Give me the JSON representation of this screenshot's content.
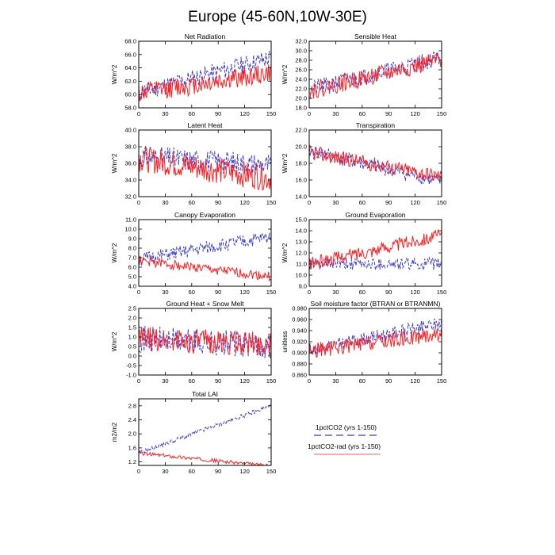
{
  "figure": {
    "title": "Europe (45-60N,10W-30E)",
    "legend": {
      "entries": [
        {
          "label": "1pctCO2 (yrs 1-150)",
          "color": "#3b3bd6",
          "dashed": true
        },
        {
          "label": "1pctCO2-rad (yrs 1-150)",
          "color": "#ff2020",
          "dashed": false
        }
      ]
    }
  },
  "chart_data": [
    {
      "type": "line",
      "title": "Net Radiation",
      "ylabel": "W/m^2",
      "xlim": [
        0,
        150
      ],
      "ylim": [
        58,
        68
      ],
      "xticks": [
        0,
        30,
        60,
        90,
        120,
        150
      ],
      "yticks": [
        "58.0",
        "60.0",
        "62.0",
        "64.0",
        "66.0",
        "68.0"
      ],
      "series": [
        {
          "name": "1pctCO2 (yrs 1-150)",
          "start": 60.3,
          "end": 65.5,
          "amp": 1.4,
          "seed": 11
        },
        {
          "name": "1pctCO2-rad (yrs 1-150)",
          "start": 60.2,
          "end": 63.2,
          "amp": 1.5,
          "seed": 12
        }
      ]
    },
    {
      "type": "line",
      "title": "Sensible Heat",
      "ylabel": "W/m^2",
      "xlim": [
        0,
        150
      ],
      "ylim": [
        18,
        32
      ],
      "xticks": [
        0,
        30,
        60,
        90,
        120,
        150
      ],
      "yticks": [
        "18.0",
        "20.0",
        "22.0",
        "24.0",
        "26.0",
        "28.0",
        "30.0",
        "32.0"
      ],
      "series": [
        {
          "name": "1pctCO2 (yrs 1-150)",
          "start": 21.8,
          "end": 28.6,
          "amp": 1.8,
          "seed": 21
        },
        {
          "name": "1pctCO2-rad (yrs 1-150)",
          "start": 21.6,
          "end": 28.0,
          "amp": 1.9,
          "seed": 22
        }
      ]
    },
    {
      "type": "line",
      "title": "Latent Heat",
      "ylabel": "W/m^2",
      "xlim": [
        0,
        150
      ],
      "ylim": [
        32,
        40
      ],
      "xticks": [
        0,
        30,
        60,
        90,
        120,
        150
      ],
      "yticks": [
        "32.0",
        "34.0",
        "36.0",
        "38.0",
        "40.0"
      ],
      "series": [
        {
          "name": "1pctCO2 (yrs 1-150)",
          "start": 36.8,
          "end": 35.8,
          "amp": 1.4,
          "seed": 31
        },
        {
          "name": "1pctCO2-rad (yrs 1-150)",
          "start": 36.6,
          "end": 34.2,
          "amp": 1.6,
          "seed": 32
        }
      ]
    },
    {
      "type": "line",
      "title": "Transpiration",
      "ylabel": "W/m^2",
      "xlim": [
        0,
        150
      ],
      "ylim": [
        14,
        22
      ],
      "xticks": [
        0,
        30,
        60,
        90,
        120,
        150
      ],
      "yticks": [
        "14.0",
        "16.0",
        "18.0",
        "20.0",
        "22.0"
      ],
      "series": [
        {
          "name": "1pctCO2 (yrs 1-150)",
          "start": 19.5,
          "end": 15.8,
          "amp": 0.9,
          "seed": 41
        },
        {
          "name": "1pctCO2-rad (yrs 1-150)",
          "start": 19.3,
          "end": 16.4,
          "amp": 0.9,
          "seed": 42
        }
      ]
    },
    {
      "type": "line",
      "title": "Canopy Evaporation",
      "ylabel": "W/m^2",
      "xlim": [
        0,
        150
      ],
      "ylim": [
        4,
        11
      ],
      "xticks": [
        0,
        30,
        60,
        90,
        120,
        150
      ],
      "yticks": [
        "4.0",
        "5.0",
        "6.0",
        "7.0",
        "8.0",
        "9.0",
        "10.0",
        "11.0"
      ],
      "series": [
        {
          "name": "1pctCO2 (yrs 1-150)",
          "start": 6.8,
          "end": 9.2,
          "amp": 0.7,
          "seed": 51
        },
        {
          "name": "1pctCO2-rad (yrs 1-150)",
          "start": 6.7,
          "end": 5.0,
          "amp": 0.5,
          "seed": 52
        }
      ]
    },
    {
      "type": "line",
      "title": "Ground Evaporation",
      "ylabel": "W/m^2",
      "xlim": [
        0,
        150
      ],
      "ylim": [
        9,
        15
      ],
      "xticks": [
        0,
        30,
        60,
        90,
        120,
        150
      ],
      "yticks": [
        "9.0",
        "10.0",
        "11.0",
        "12.0",
        "13.0",
        "14.0",
        "15.0"
      ],
      "series": [
        {
          "name": "1pctCO2 (yrs 1-150)",
          "start": 11.0,
          "end": 11.0,
          "amp": 0.55,
          "seed": 61
        },
        {
          "name": "1pctCO2-rad (yrs 1-150)",
          "start": 11.0,
          "end": 13.6,
          "amp": 0.6,
          "seed": 62
        }
      ]
    },
    {
      "type": "line",
      "title": "Ground Heat + Snow Melt",
      "ylabel": "W/m^2",
      "xlim": [
        0,
        150
      ],
      "ylim": [
        -1,
        2.5
      ],
      "xticks": [
        0,
        30,
        60,
        90,
        120,
        150
      ],
      "yticks": [
        "-1.0",
        "-0.5",
        "0.0",
        "0.5",
        "1.0",
        "1.5",
        "2.0",
        "2.5"
      ],
      "series": [
        {
          "name": "1pctCO2 (yrs 1-150)",
          "start": 0.9,
          "end": 0.55,
          "amp": 0.7,
          "seed": 71
        },
        {
          "name": "1pctCO2-rad (yrs 1-150)",
          "start": 0.9,
          "end": 0.6,
          "amp": 0.65,
          "seed": 72
        }
      ]
    },
    {
      "type": "line",
      "title": "Soil moisture factor (BTRAN or BTRANMN)",
      "ylabel": "unitless",
      "xlim": [
        0,
        150
      ],
      "ylim": [
        0.86,
        0.98
      ],
      "xticks": [
        0,
        30,
        60,
        90,
        120,
        150
      ],
      "yticks": [
        "0.860",
        "0.880",
        "0.900",
        "0.920",
        "0.940",
        "0.960",
        "0.980"
      ],
      "series": [
        {
          "name": "1pctCO2 (yrs 1-150)",
          "start": 0.905,
          "end": 0.953,
          "amp": 0.012,
          "seed": 81
        },
        {
          "name": "1pctCO2-rad (yrs 1-150)",
          "start": 0.903,
          "end": 0.935,
          "amp": 0.014,
          "seed": 82
        }
      ]
    },
    {
      "type": "line",
      "title": "Total LAI",
      "ylabel": "m2/m2",
      "xlim": [
        0,
        150
      ],
      "ylim": [
        1.1,
        3.0
      ],
      "xticks": [
        0,
        30,
        60,
        90,
        120,
        150
      ],
      "yticks": [
        "1.2",
        "1.6",
        "2.0",
        "2.4",
        "2.8"
      ],
      "series": [
        {
          "name": "1pctCO2 (yrs 1-150)",
          "start": 1.45,
          "end": 2.8,
          "amp": 0.06,
          "seed": 91
        },
        {
          "name": "1pctCO2-rad (yrs 1-150)",
          "start": 1.45,
          "end": 1.08,
          "amp": 0.05,
          "seed": 92
        }
      ]
    }
  ]
}
